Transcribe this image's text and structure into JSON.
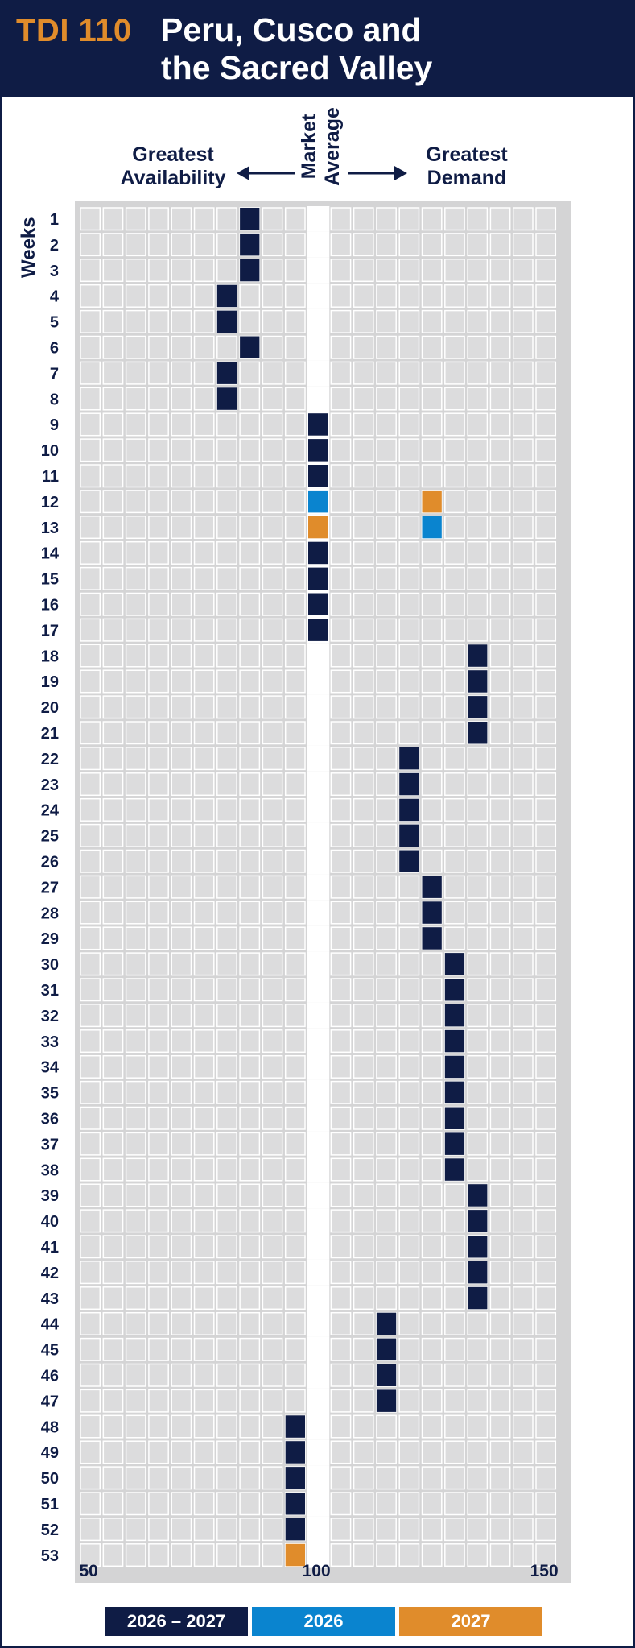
{
  "header": {
    "code": "TDI 110",
    "title_line1": "Peru, Cusco and",
    "title_line2": "the Sacred Valley"
  },
  "labels": {
    "left_line1": "Greatest",
    "left_line2": "Availability",
    "right_line1": "Greatest",
    "right_line2": "Demand",
    "center_line1": "Market",
    "center_line2": "Average",
    "weeks": "Weeks"
  },
  "colors": {
    "navy": "#0f1c45",
    "blue": "#0a84cf",
    "orange": "#e08c2b",
    "cell": "#dcdcdd",
    "panel": "#d4d4d5"
  },
  "chart_data": {
    "type": "scatter",
    "x_range": [
      50,
      150
    ],
    "x_ticks": [
      50,
      100,
      150
    ],
    "market_average": 100,
    "series": [
      {
        "name": "2026 – 2027",
        "color": "#0f1c45",
        "points": [
          {
            "week": 1,
            "x": 85
          },
          {
            "week": 2,
            "x": 85
          },
          {
            "week": 3,
            "x": 85
          },
          {
            "week": 4,
            "x": 80
          },
          {
            "week": 5,
            "x": 80
          },
          {
            "week": 6,
            "x": 85
          },
          {
            "week": 7,
            "x": 80
          },
          {
            "week": 8,
            "x": 80
          },
          {
            "week": 9,
            "x": 100
          },
          {
            "week": 10,
            "x": 100
          },
          {
            "week": 11,
            "x": 100
          },
          {
            "week": 14,
            "x": 100
          },
          {
            "week": 15,
            "x": 100
          },
          {
            "week": 16,
            "x": 100
          },
          {
            "week": 17,
            "x": 100
          },
          {
            "week": 18,
            "x": 135
          },
          {
            "week": 19,
            "x": 135
          },
          {
            "week": 20,
            "x": 135
          },
          {
            "week": 21,
            "x": 135
          },
          {
            "week": 22,
            "x": 120
          },
          {
            "week": 23,
            "x": 120
          },
          {
            "week": 24,
            "x": 120
          },
          {
            "week": 25,
            "x": 120
          },
          {
            "week": 26,
            "x": 120
          },
          {
            "week": 27,
            "x": 125
          },
          {
            "week": 28,
            "x": 125
          },
          {
            "week": 29,
            "x": 125
          },
          {
            "week": 30,
            "x": 130
          },
          {
            "week": 31,
            "x": 130
          },
          {
            "week": 32,
            "x": 130
          },
          {
            "week": 33,
            "x": 130
          },
          {
            "week": 34,
            "x": 130
          },
          {
            "week": 35,
            "x": 130
          },
          {
            "week": 36,
            "x": 130
          },
          {
            "week": 37,
            "x": 130
          },
          {
            "week": 38,
            "x": 130
          },
          {
            "week": 39,
            "x": 135
          },
          {
            "week": 40,
            "x": 135
          },
          {
            "week": 41,
            "x": 135
          },
          {
            "week": 42,
            "x": 135
          },
          {
            "week": 43,
            "x": 135
          },
          {
            "week": 44,
            "x": 115
          },
          {
            "week": 45,
            "x": 115
          },
          {
            "week": 46,
            "x": 115
          },
          {
            "week": 47,
            "x": 115
          },
          {
            "week": 48,
            "x": 95
          },
          {
            "week": 49,
            "x": 95
          },
          {
            "week": 50,
            "x": 95
          },
          {
            "week": 51,
            "x": 95
          },
          {
            "week": 52,
            "x": 95
          }
        ]
      },
      {
        "name": "2026",
        "color": "#0a84cf",
        "points": [
          {
            "week": 12,
            "x": 100
          },
          {
            "week": 13,
            "x": 125
          }
        ]
      },
      {
        "name": "2027",
        "color": "#e08c2b",
        "points": [
          {
            "week": 12,
            "x": 125
          },
          {
            "week": 13,
            "x": 100
          },
          {
            "week": 53,
            "x": 95
          }
        ]
      }
    ],
    "weeks": 53,
    "legend": [
      "2026 – 2027",
      "2026",
      "2027"
    ],
    "legend_position": "bottom"
  }
}
